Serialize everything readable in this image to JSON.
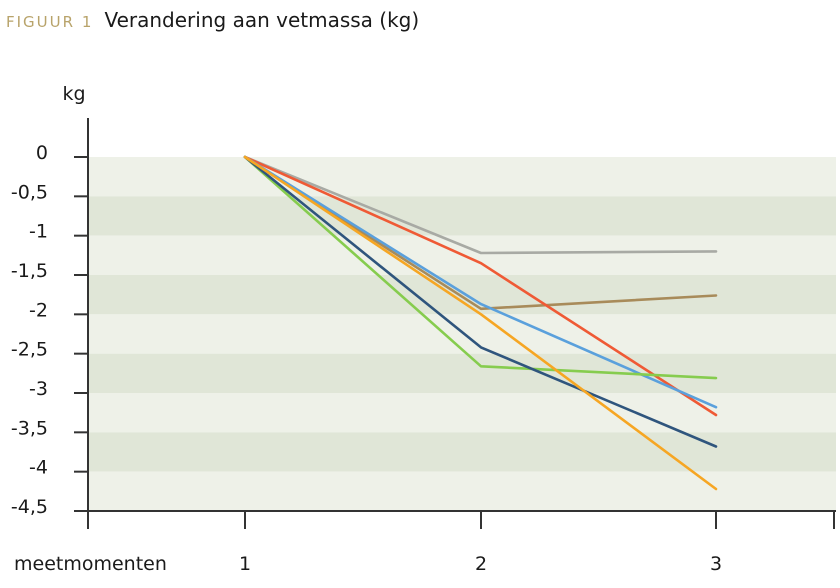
{
  "figure": {
    "label": "FIGUUR 1",
    "title": "Verandering aan vetmassa (kg)"
  },
  "chart_data": {
    "type": "line",
    "title": "Verandering aan vetmassa (kg)",
    "ylabel": "kg",
    "xlabel": "meetmomenten",
    "categories": [
      "1",
      "2",
      "3"
    ],
    "y_ticks": [
      "0",
      "-0,5",
      "-1",
      "-1,5",
      "-2",
      "-2,5",
      "-3",
      "-3,5",
      "-4",
      "-4,5"
    ],
    "ylim": [
      -4.5,
      0
    ],
    "grid": "alternating horizontal bands",
    "colors": {
      "band_light": "#eef1e8",
      "band_dark": "#e0e6d7",
      "axis": "#333333"
    },
    "series": [
      {
        "color": "#a8aaa4",
        "values": [
          0,
          -1.22,
          -1.2
        ]
      },
      {
        "color": "#a88b5a",
        "values": [
          0,
          -1.93,
          -1.76
        ]
      },
      {
        "color": "#ef5a35",
        "values": [
          0,
          -1.35,
          -3.28
        ]
      },
      {
        "color": "#5aa0dc",
        "values": [
          0,
          -1.87,
          -3.18
        ]
      },
      {
        "color": "#86cc4e",
        "values": [
          0,
          -2.66,
          -2.81
        ]
      },
      {
        "color": "#2f557d",
        "values": [
          0,
          -2.42,
          -3.68
        ]
      },
      {
        "color": "#f6a623",
        "values": [
          0,
          -2.0,
          -4.22
        ]
      }
    ]
  }
}
